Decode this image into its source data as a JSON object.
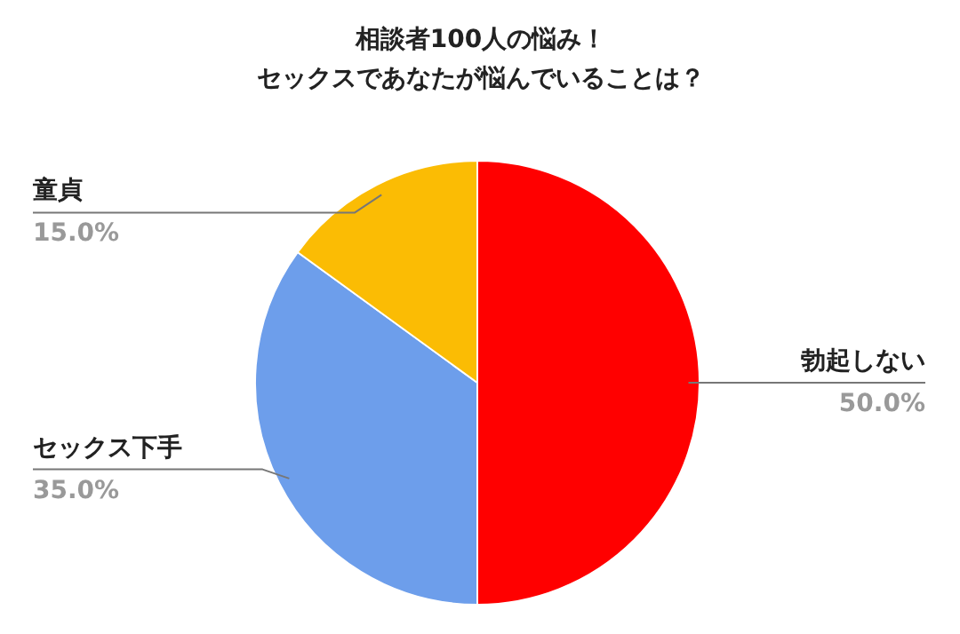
{
  "chart_data": {
    "type": "pie",
    "title": "相談者100人の悩み！",
    "subtitle": "セックスであなたが悩んでいることは？",
    "categories": [
      "勃起しない",
      "セックス下手",
      "童貞"
    ],
    "values": [
      50,
      35,
      15
    ],
    "colors": [
      "#ff0000",
      "#6d9eeb",
      "#fbbc04"
    ],
    "value_labels": [
      "50.0%",
      "35.0%",
      "15.0%"
    ]
  }
}
